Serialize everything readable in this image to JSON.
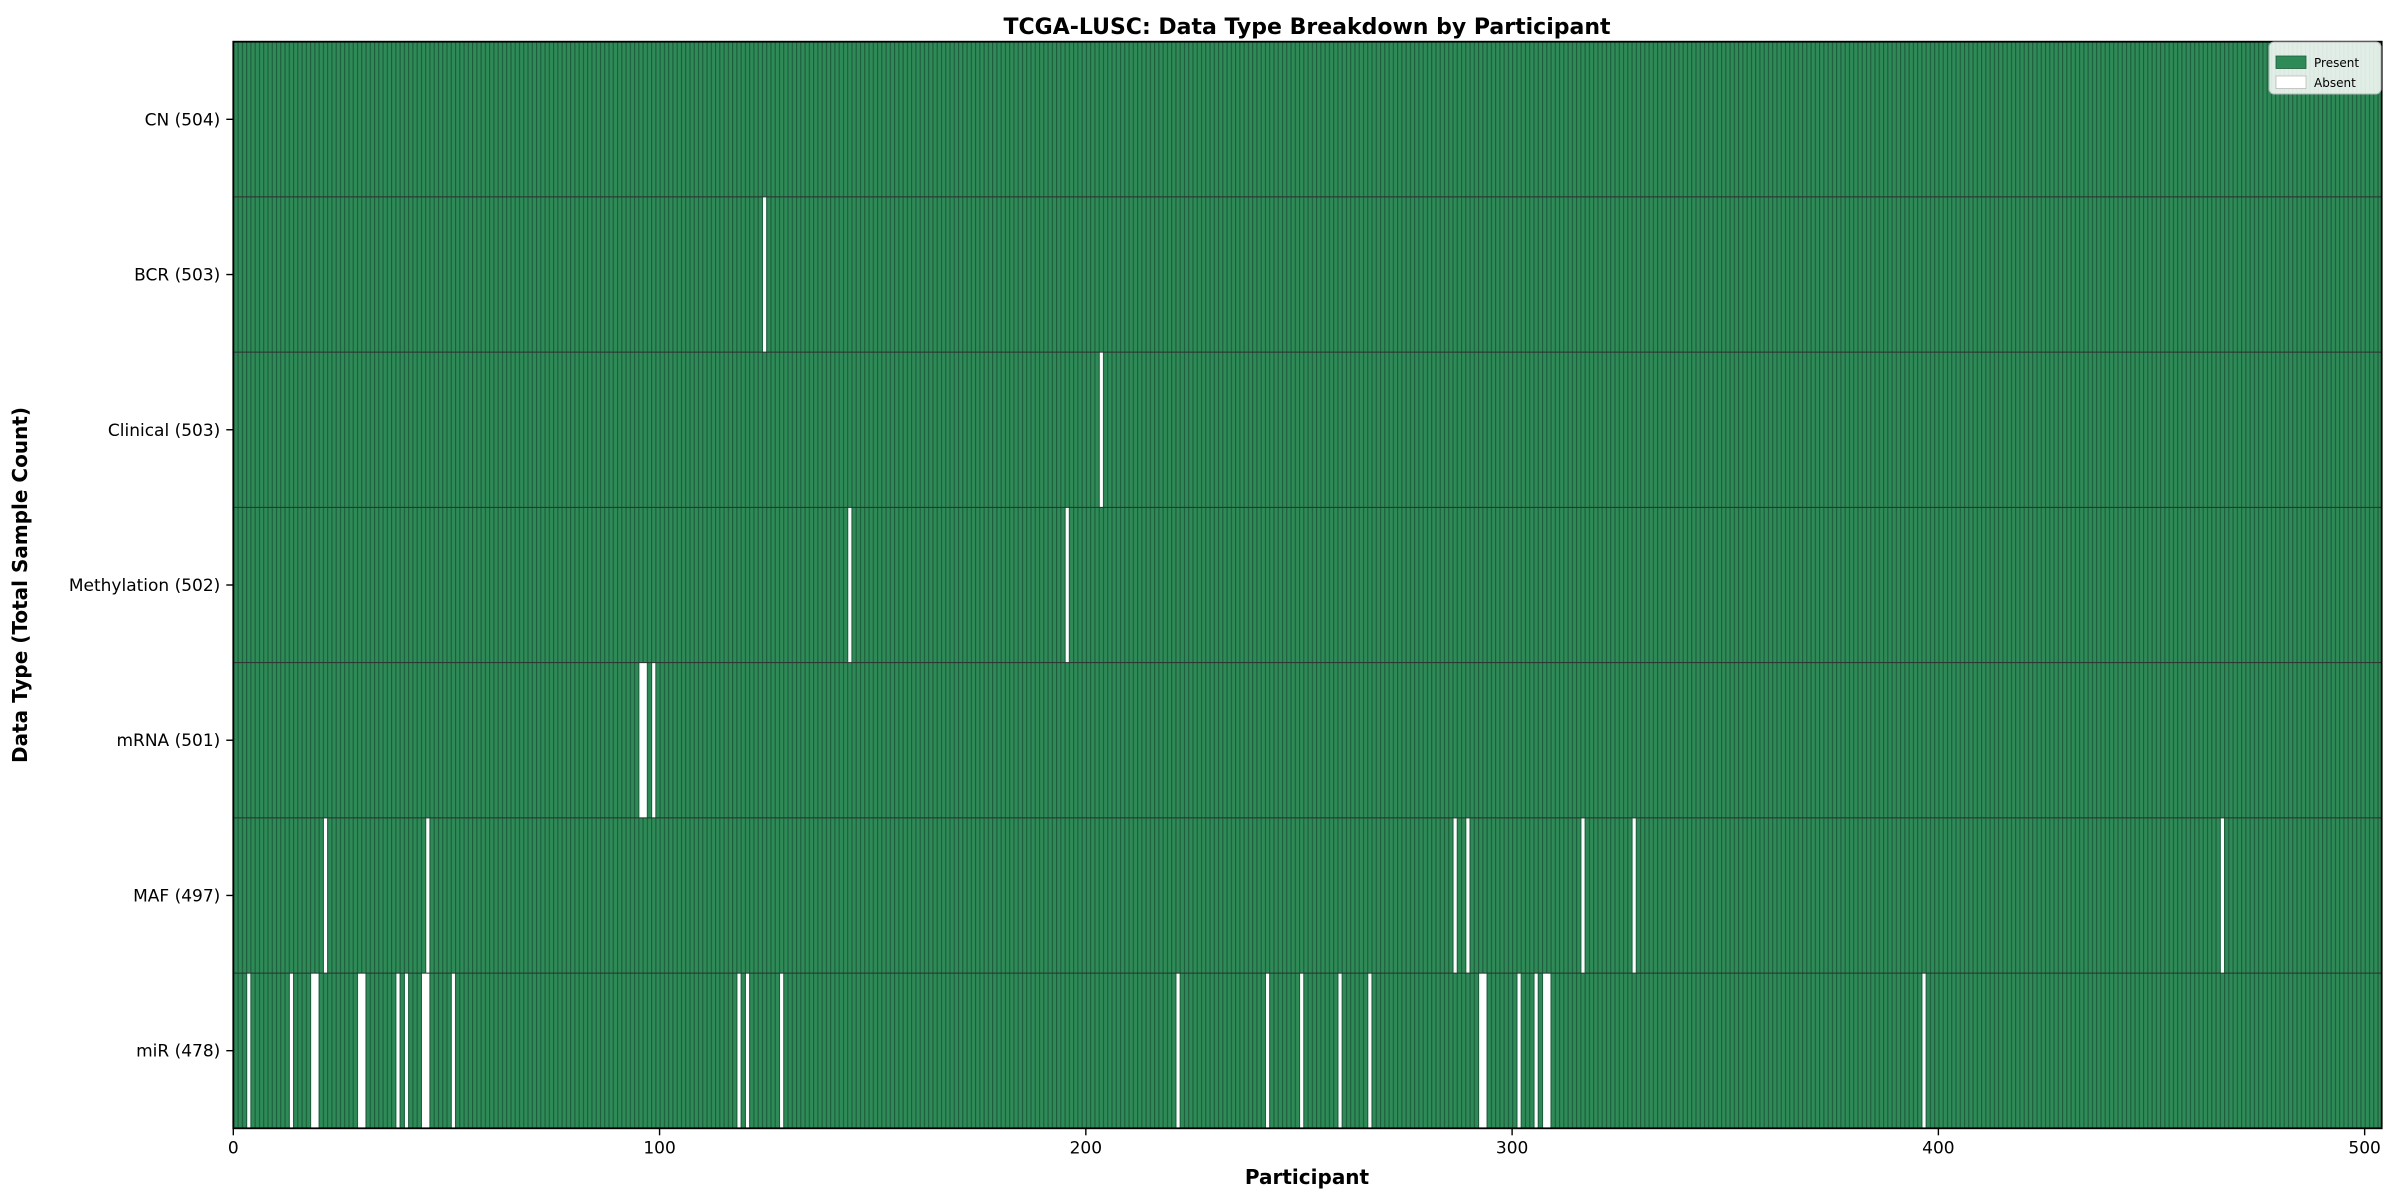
{
  "figure": {
    "background": "#ffffff"
  },
  "chart_data": {
    "type": "heatmap",
    "title": "TCGA-LUSC: Data Type Breakdown by Participant",
    "xlabel": "Participant",
    "ylabel": "Data Type (Total Sample Count)",
    "x_ticks": [
      0,
      100,
      200,
      300,
      400,
      500
    ],
    "x_range": [
      0,
      504
    ],
    "total_participants": 504,
    "grid": false,
    "legend_position": "upper right",
    "legend": [
      {
        "label": "Present",
        "color": "#2e8b57"
      },
      {
        "label": "Absent",
        "color": "#ffffff"
      }
    ],
    "rows": [
      {
        "label": "CN (504)",
        "data_type": "CN",
        "count": 504,
        "absent_participants": []
      },
      {
        "label": "BCR (503)",
        "data_type": "BCR",
        "count": 503,
        "absent_participants": [
          124
        ]
      },
      {
        "label": "Clinical (503)",
        "data_type": "Clinical",
        "count": 503,
        "absent_participants": [
          203
        ]
      },
      {
        "label": "Methylation (502)",
        "data_type": "Methylation",
        "count": 502,
        "absent_participants": [
          144,
          195
        ]
      },
      {
        "label": "mRNA (501)",
        "data_type": "mRNA",
        "count": 501,
        "absent_participants": [
          95,
          96,
          98
        ]
      },
      {
        "label": "MAF (497)",
        "data_type": "MAF",
        "count": 497,
        "absent_participants": [
          21,
          45,
          286,
          289,
          316,
          328,
          466
        ]
      },
      {
        "label": "miR (478)",
        "data_type": "miR",
        "count": 478,
        "absent_participants": [
          3,
          13,
          18,
          19,
          29,
          30,
          38,
          40,
          44,
          45,
          51,
          118,
          120,
          128,
          221,
          242,
          250,
          259,
          266,
          292,
          293,
          301,
          305,
          307,
          308,
          396
        ]
      }
    ],
    "colors": {
      "present": "#2e8b57",
      "present_edge": "#1d5c3c",
      "absent": "#ffffff",
      "row_divider": "#2e2e2e",
      "spine": "#000000",
      "text": "#000000"
    }
  }
}
